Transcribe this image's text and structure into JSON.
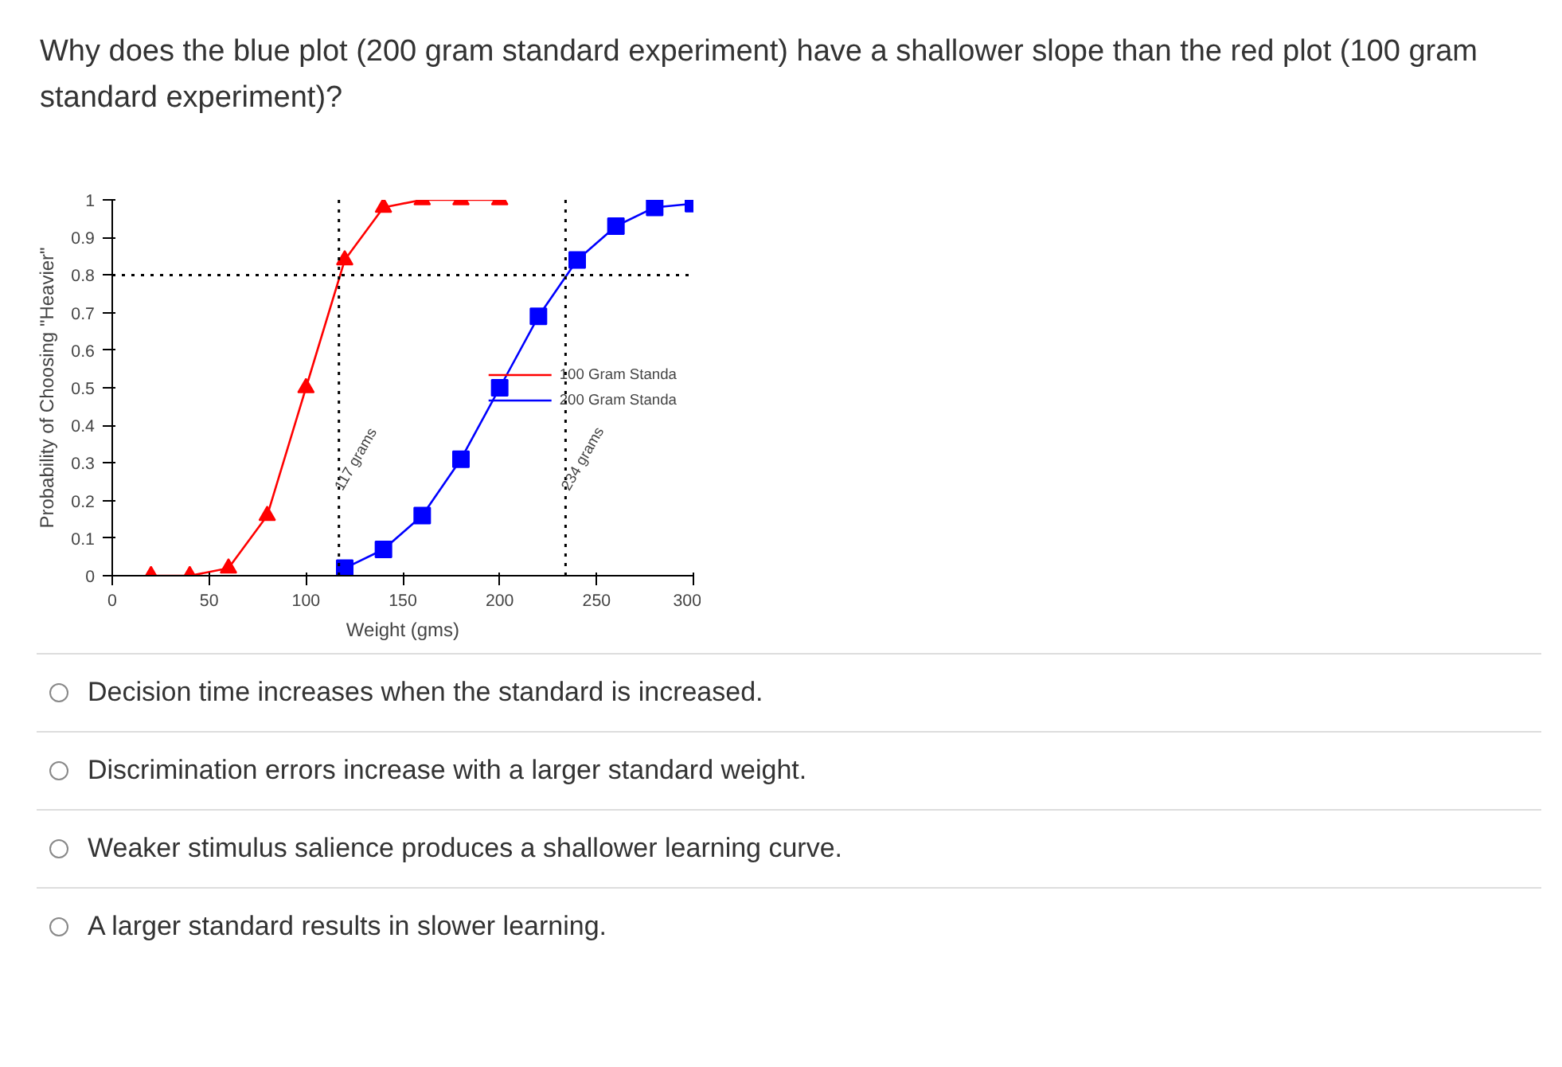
{
  "chart_data": {
    "type": "line",
    "title": "Why does the blue plot (200 gram standard experiment) have a shallower slope than the red plot (100 gram standard experiment)?",
    "xlabel": "Weight (gms)",
    "ylabel": "Probability of Choosing \"Heavier\"",
    "xlim": [
      0,
      300
    ],
    "xticks": [
      0,
      50,
      100,
      150,
      200,
      250,
      300
    ],
    "ylim": [
      0,
      1
    ],
    "yticks": [
      0,
      0.1,
      0.2,
      0.3,
      0.4,
      0.5,
      0.6,
      0.7,
      0.8,
      0.9,
      1
    ],
    "grid": false,
    "legend": "right",
    "series": [
      {
        "name": "100 Gram Standa",
        "color": "#ff0000",
        "marker": "triangle",
        "x": [
          20,
          40,
          60,
          80,
          100,
          120,
          140,
          160,
          180,
          200
        ],
        "values": [
          0,
          0,
          0.02,
          0.16,
          0.5,
          0.84,
          0.98,
          1,
          1,
          1
        ]
      },
      {
        "name": "200 Gram Standa",
        "color": "#0000ff",
        "marker": "square",
        "x": [
          120,
          140,
          160,
          180,
          200,
          220,
          240,
          260,
          280,
          300
        ],
        "values": [
          0.02,
          0.07,
          0.16,
          0.31,
          0.5,
          0.69,
          0.84,
          0.93,
          0.98,
          0.99
        ]
      }
    ],
    "ref_lines": [
      {
        "axis": "y",
        "value": 0.8,
        "label": null,
        "color": "#000000",
        "line_style": "dotted"
      },
      {
        "axis": "x",
        "value": 117,
        "label": "117 grams",
        "color": "#000000",
        "line_style": "dotted"
      },
      {
        "axis": "x",
        "value": 234,
        "label": "234 grams",
        "color": "#000000",
        "line_style": "dotted"
      }
    ],
    "annotations": [
      "Decision time increases when the standard is increased.",
      "Discrimination errors increase with a larger standard weight.",
      "Weaker stimulus salience produces a shallower learning curve.",
      "A larger standard results in slower learning."
    ]
  }
}
